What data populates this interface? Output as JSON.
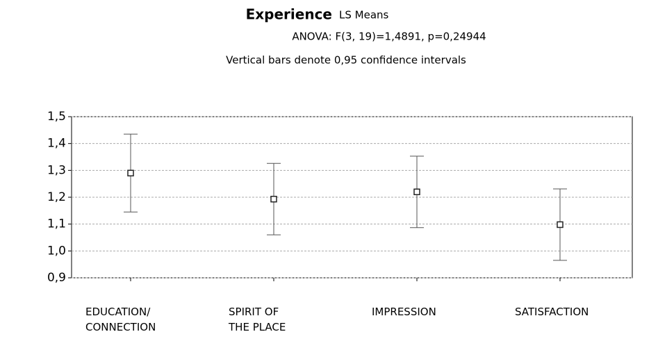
{
  "chart_data": {
    "type": "errorbar",
    "title": "Experience",
    "subtitle": "LS Means",
    "annotations": [
      "ANOVA: F(3, 19)=1,4891, p=0,24944",
      "Vertical bars denote 0,95 confidence intervals"
    ],
    "categories": [
      "EDUCATION/\nCONNECTION",
      "SPIRIT OF\nTHE PLACE",
      "IMPRESSION",
      "SATISFACTION"
    ],
    "values": [
      1.29,
      1.193,
      1.22,
      1.098
    ],
    "errors": [
      0.145,
      0.133,
      0.133,
      0.133
    ],
    "color": "#555555",
    "ylim": [
      0.9,
      1.5
    ],
    "yticks": [
      {
        "value": 0.9,
        "label": "0,9"
      },
      {
        "value": 1.0,
        "label": "1,0"
      },
      {
        "value": 1.1,
        "label": "1,1"
      },
      {
        "value": 1.2,
        "label": "1,2"
      },
      {
        "value": 1.3,
        "label": "1,3"
      },
      {
        "value": 1.4,
        "label": "1,4"
      },
      {
        "value": 1.5,
        "label": "1,5"
      }
    ],
    "grid": true
  }
}
